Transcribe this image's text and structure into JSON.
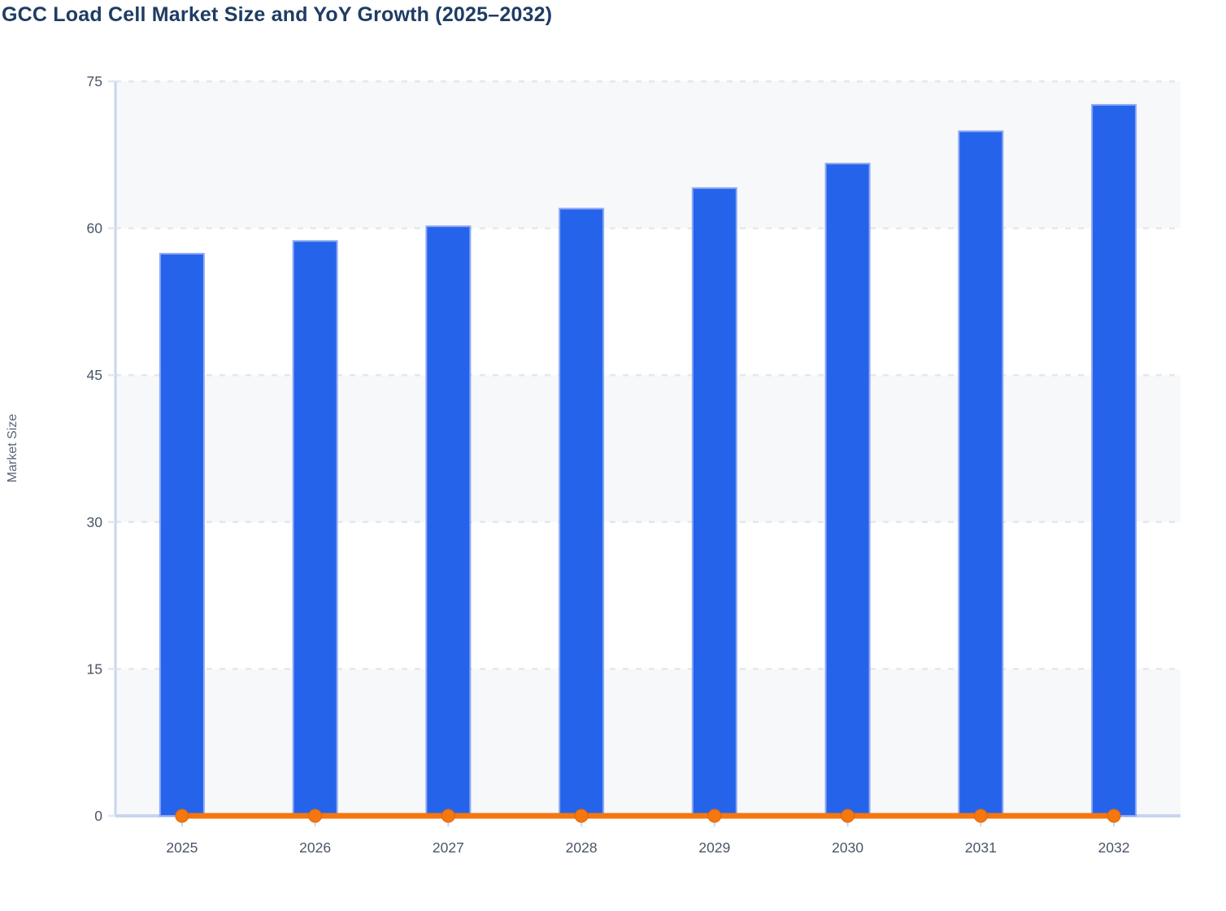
{
  "chart_data": {
    "type": "bar",
    "subtype": "combo-bar-line",
    "title": "GCC Load Cell Market Size and YoY Growth (2025–2032)",
    "xlabel": "",
    "ylabel": "Market Size",
    "categories": [
      "2025",
      "2026",
      "2027",
      "2028",
      "2029",
      "2030",
      "2031",
      "2032"
    ],
    "series": [
      {
        "name": "Market Size",
        "type": "bar",
        "color": "#2563eb",
        "border_color": "#8ea9f2",
        "values": [
          57.4,
          58.7,
          60.2,
          62.0,
          64.1,
          66.6,
          69.9,
          72.6
        ]
      },
      {
        "name": "YoY Growth",
        "type": "line",
        "color": "#f4770f",
        "marker": "circle",
        "values": [
          0,
          0,
          0,
          0,
          0,
          0,
          0,
          0
        ]
      }
    ],
    "ylim": [
      0,
      75
    ],
    "yticks": [
      0,
      15,
      30,
      45,
      60,
      75
    ],
    "legend_position": "none",
    "grid": "horizontal-dashed",
    "alternating_bands": true,
    "colors": {
      "band_fill": "#f7f8fa",
      "gridline": "#e4e7ec",
      "axis_line": "#c9d4f0",
      "tick_text": "#4a5568",
      "title_text": "#1f3c64",
      "axis_title_text": "#5b6577"
    }
  }
}
